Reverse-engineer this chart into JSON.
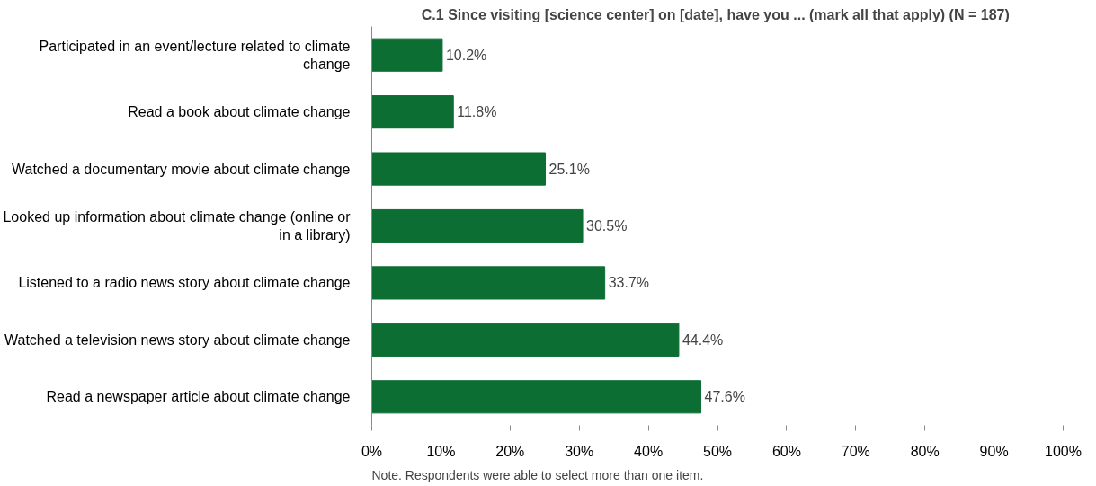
{
  "chart_data": {
    "type": "bar",
    "orientation": "horizontal",
    "title": "C.1 Since visiting [science center] on [date], have you ... (mark all that apply) (N =  187)",
    "categories": [
      "Participated in an event/lecture related to climate change",
      "Read a book about climate change",
      "Watched a documentary movie about climate change",
      "Looked up information about climate change (online or in a library)",
      "Listened to a radio news story about climate change",
      "Watched a television news story about climate change",
      "Read a newspaper article about climate change"
    ],
    "values": [
      10.2,
      11.8,
      25.1,
      30.5,
      33.7,
      44.4,
      47.6
    ],
    "value_labels": [
      "10.2%",
      "11.8%",
      "25.1%",
      "30.5%",
      "33.7%",
      "44.4%",
      "47.6%"
    ],
    "color": "#0c6e33",
    "xlim": [
      0,
      100
    ],
    "xticks": [
      {
        "value": 0,
        "label": "0%"
      },
      {
        "value": 10,
        "label": "10%"
      },
      {
        "value": 20,
        "label": "20%"
      },
      {
        "value": 30,
        "label": "30%"
      },
      {
        "value": 40,
        "label": "40%"
      },
      {
        "value": 50,
        "label": "50%"
      },
      {
        "value": 60,
        "label": "60%"
      },
      {
        "value": 70,
        "label": "70%"
      },
      {
        "value": 80,
        "label": "80%"
      },
      {
        "value": 90,
        "label": "90%"
      },
      {
        "value": 100,
        "label": "100%"
      }
    ],
    "grid": false,
    "annotations": [
      "Note. Respondents were able to select more than one item."
    ]
  }
}
